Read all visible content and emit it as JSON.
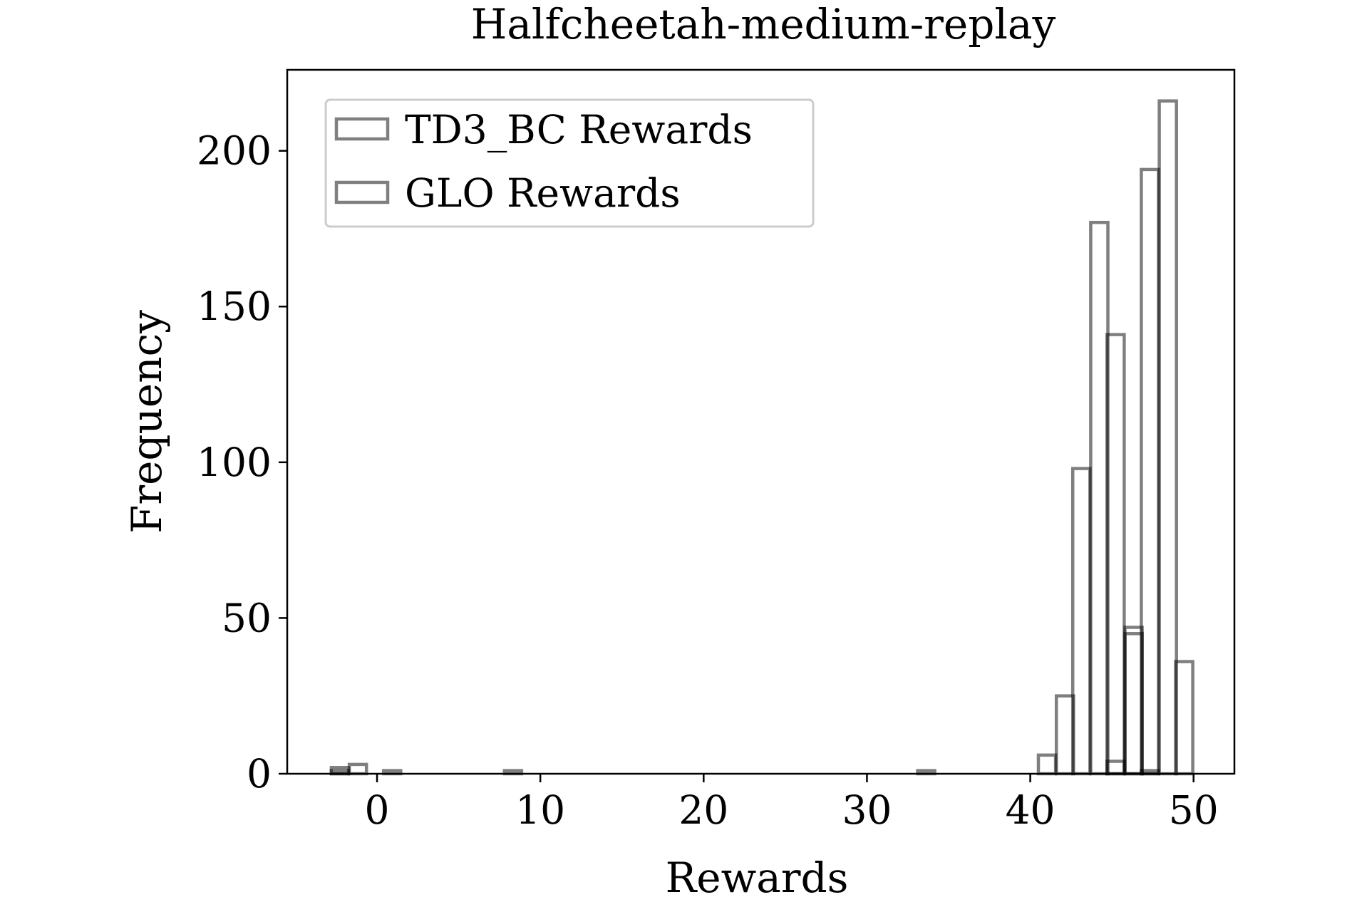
{
  "chart_data": {
    "type": "bar",
    "subtype": "histogram",
    "title": "Halfcheetah-medium-replay",
    "xlabel": "Rewards",
    "ylabel": "Frequency",
    "xlim": [
      -5.5,
      52.5
    ],
    "ylim": [
      0,
      226
    ],
    "xticks": [
      0,
      10,
      20,
      30,
      40,
      50
    ],
    "yticks": [
      0,
      50,
      100,
      150,
      200
    ],
    "grid": false,
    "legend_position": "top-left",
    "bin_width": 1.05,
    "series": [
      {
        "name": "TD3_BC Rewards",
        "color": "#000000",
        "bins": [
          {
            "x": -2.8,
            "count": 2
          },
          {
            "x": -1.7,
            "count": 3
          },
          {
            "x": 0.4,
            "count": 1
          },
          {
            "x": 7.8,
            "count": 1
          },
          {
            "x": 33.1,
            "count": 1
          },
          {
            "x": 40.5,
            "count": 6
          },
          {
            "x": 41.6,
            "count": 25
          },
          {
            "x": 42.6,
            "count": 98
          },
          {
            "x": 43.7,
            "count": 177
          },
          {
            "x": 44.7,
            "count": 141
          },
          {
            "x": 45.8,
            "count": 47
          },
          {
            "x": 46.8,
            "count": 194
          },
          {
            "x": 47.9,
            "count": 216
          },
          {
            "x": 48.9,
            "count": 36
          }
        ]
      },
      {
        "name": "GLO Rewards",
        "color": "#000000",
        "bins": [
          {
            "x": -2.8,
            "count": 1
          },
          {
            "x": 44.7,
            "count": 4
          },
          {
            "x": 45.8,
            "count": 45
          },
          {
            "x": 46.8,
            "count": 1
          }
        ]
      }
    ]
  }
}
